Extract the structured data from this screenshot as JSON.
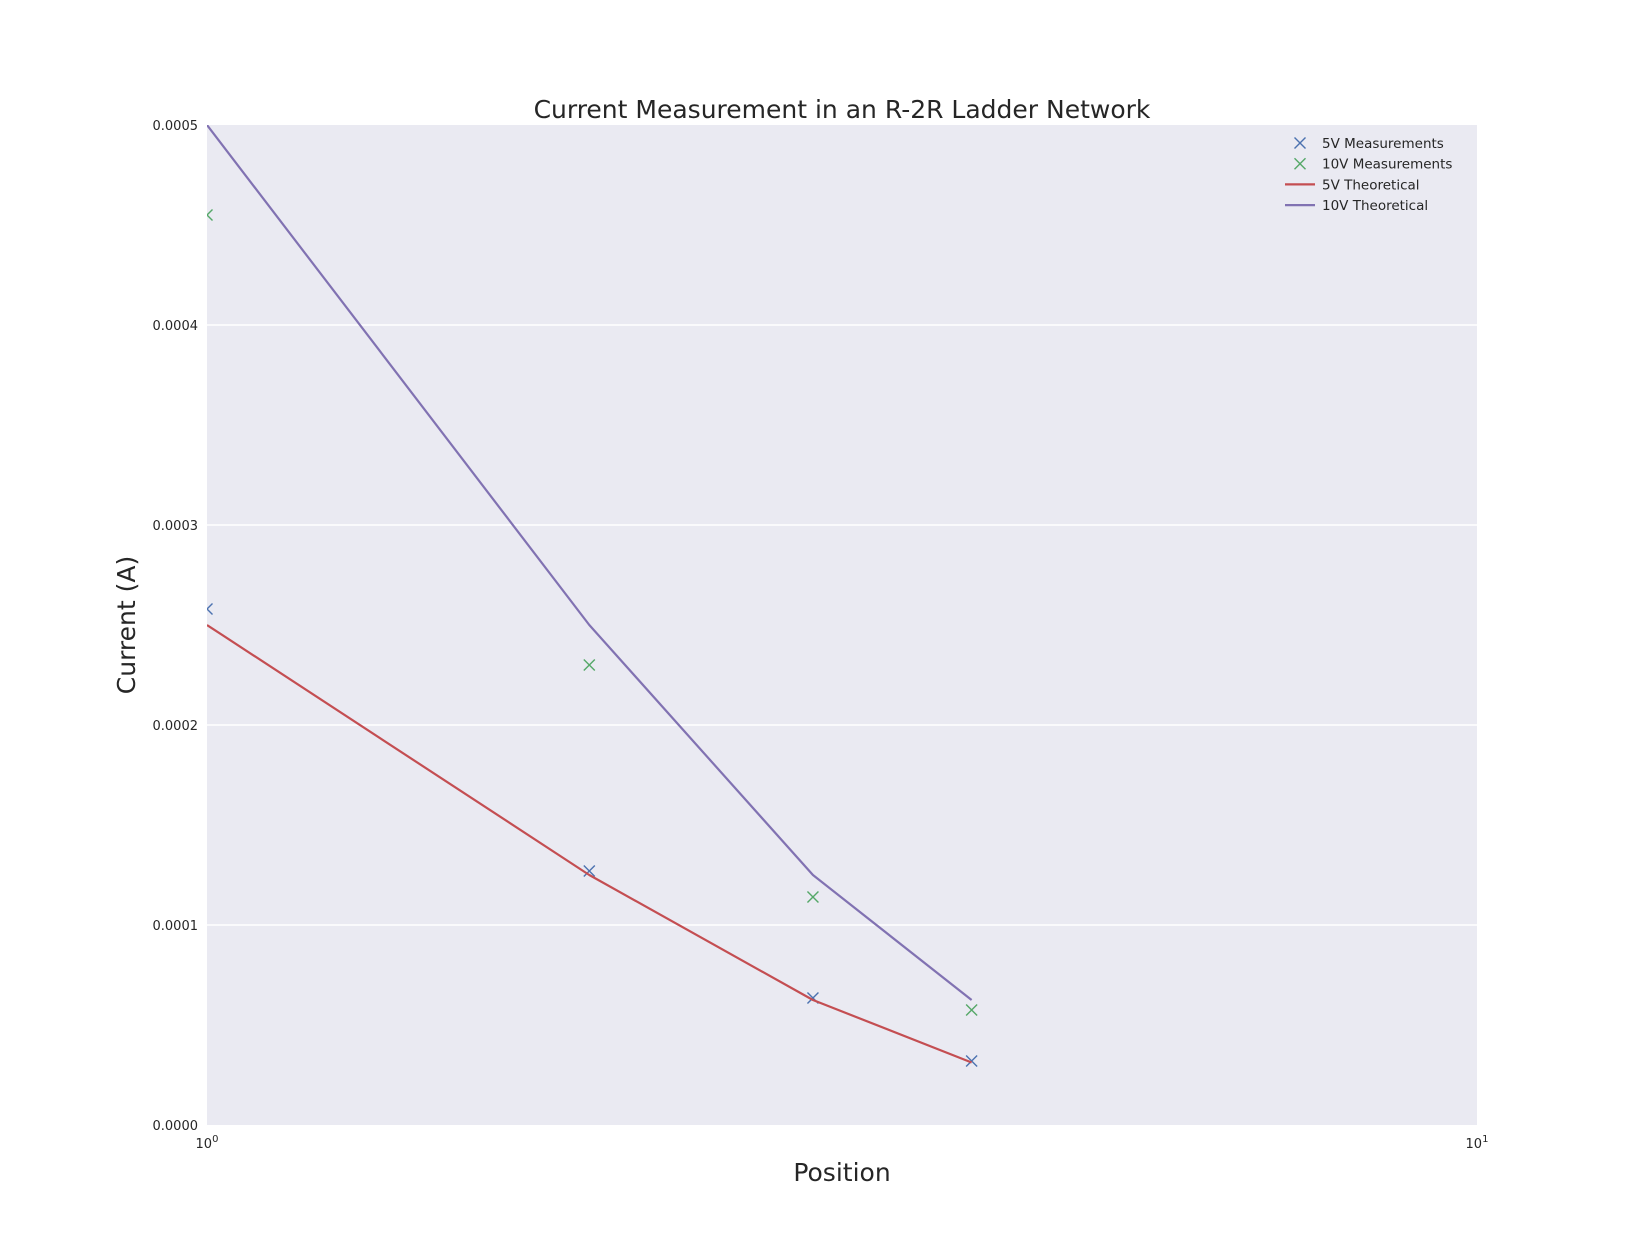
{
  "chart_data": {
    "type": "line",
    "title": "Current Measurement in an R-2R Ladder Network",
    "xlabel": "Position",
    "ylabel": "Current (A)",
    "xscale": "log",
    "xlim": [
      1,
      10
    ],
    "ylim": [
      0,
      0.0005
    ],
    "grid": "horizontal",
    "legend_location": "top-right",
    "x_tick_labels": [
      {
        "base": "10",
        "exp": "0",
        "value": 1
      },
      {
        "base": "10",
        "exp": "1",
        "value": 10
      }
    ],
    "y_tick_labels": [
      "0.0000",
      "0.0001",
      "0.0002",
      "0.0003",
      "0.0004",
      "0.0005"
    ],
    "y_ticks": [
      0,
      0.0001,
      0.0002,
      0.0003,
      0.0004,
      0.0005
    ],
    "x": [
      1,
      2,
      3,
      4
    ],
    "series": [
      {
        "name": "5V Measurements",
        "kind": "marker",
        "color": "#4c72b0",
        "x": [
          1,
          2,
          3,
          4
        ],
        "values": [
          0.000258,
          0.000127,
          6.35e-05,
          3.2e-05
        ]
      },
      {
        "name": "10V Measurements",
        "kind": "marker",
        "color": "#55a868",
        "x": [
          1,
          2,
          3,
          4
        ],
        "values": [
          0.000455,
          0.00023,
          0.000114,
          5.75e-05
        ]
      },
      {
        "name": "5V Theoretical",
        "kind": "line",
        "color": "#c44e52",
        "x": [
          1,
          2,
          3,
          4
        ],
        "values": [
          0.00025,
          0.000125,
          6.25e-05,
          3.125e-05
        ]
      },
      {
        "name": "10V Theoretical",
        "kind": "line",
        "color": "#8172b2",
        "x": [
          1,
          2,
          3,
          4
        ],
        "values": [
          0.0005,
          0.00025,
          0.000125,
          6.25e-05
        ]
      }
    ],
    "colors": {
      "plot_background": "#eaeaf2",
      "grid": "#ffffff",
      "text": "#262626"
    }
  }
}
